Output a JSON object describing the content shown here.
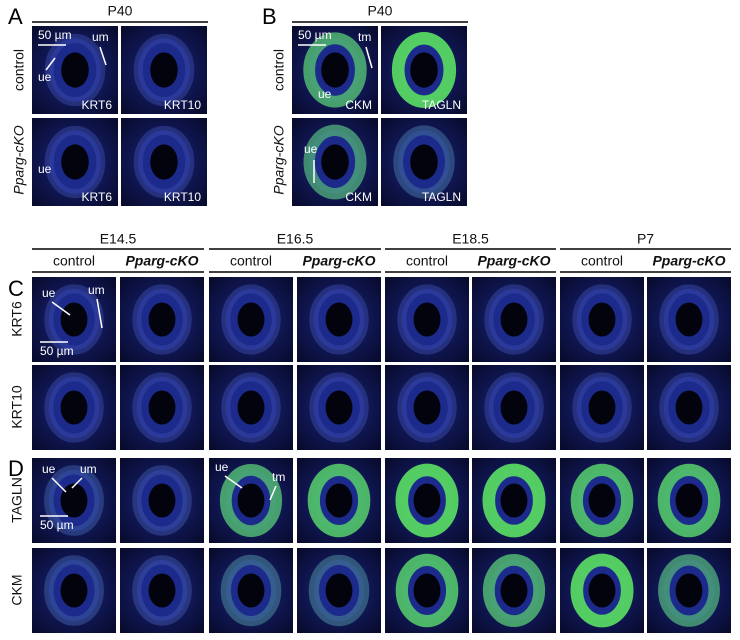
{
  "panel_a": {
    "label": "A",
    "header": "P40",
    "rows": [
      "control",
      "Pparg-cKO"
    ],
    "stains": [
      [
        "KRT6",
        "KRT10"
      ],
      [
        "KRT6",
        "KRT10"
      ]
    ],
    "annotations": [
      "50 µm",
      "um",
      "ue",
      "ue"
    ]
  },
  "panel_b": {
    "label": "B",
    "header": "P40",
    "rows": [
      "control",
      "Pparg-cKO"
    ],
    "stains": [
      [
        "CKM",
        "TAGLN"
      ],
      [
        "CKM",
        "TAGLN"
      ]
    ],
    "annotations": [
      "50 µm",
      "tm",
      "ue",
      "ue"
    ]
  },
  "stages": [
    "E14.5",
    "E16.5",
    "E18.5",
    "P7"
  ],
  "genotypes": [
    "control",
    "Pparg-cKO",
    "control",
    "Pparg-cKO",
    "control",
    "Pparg-cKO",
    "control",
    "Pparg-cKO"
  ],
  "panel_c": {
    "label": "C",
    "rows": [
      "KRT6",
      "KRT10"
    ],
    "annotations": [
      "ue",
      "um",
      "50 µm"
    ]
  },
  "panel_d": {
    "label": "D",
    "rows": [
      "TAGLN",
      "CKM"
    ],
    "annotations": [
      "ue",
      "um",
      "50 µm",
      "ue",
      "tm"
    ]
  }
}
